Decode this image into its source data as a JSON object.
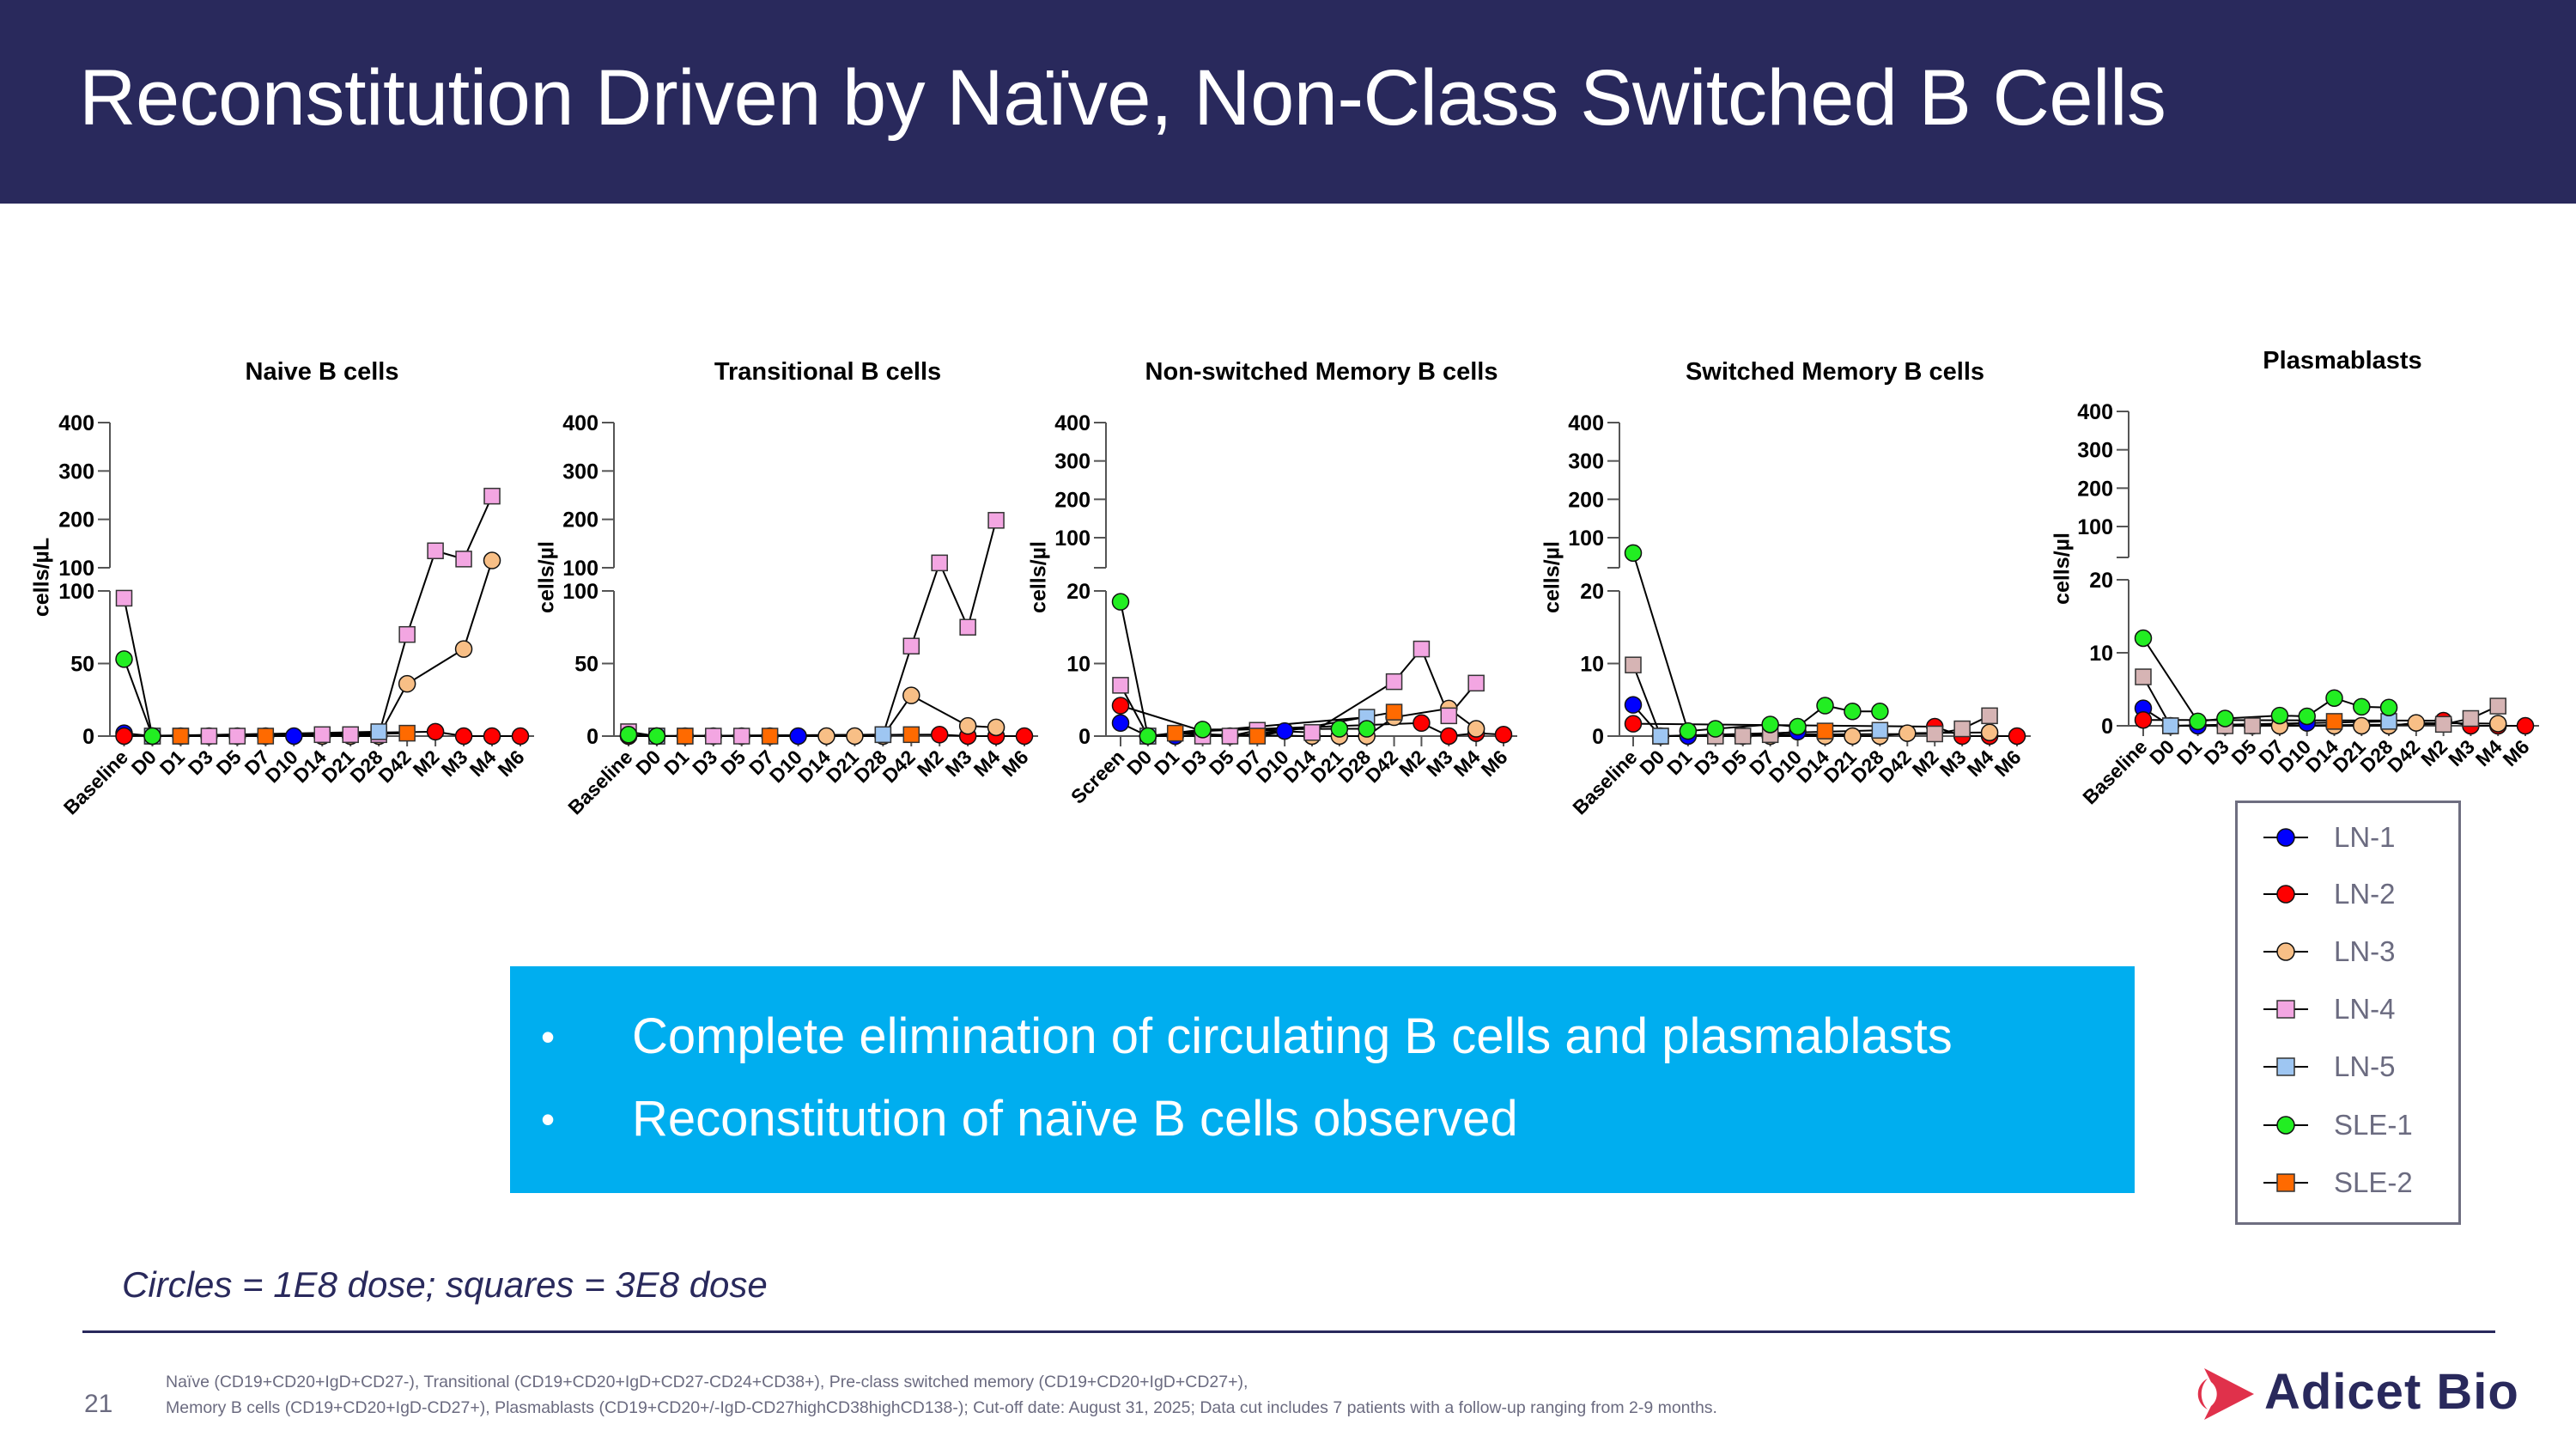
{
  "header": {
    "title": "Reconstitution Driven by Naïve, Non-Class Switched B Cells"
  },
  "callout": {
    "bullets": [
      "Complete elimination of circulating B cells and plasmablasts",
      "Reconstitution of naïve B cells observed"
    ],
    "bullet_char": "•",
    "background": "#00aeef"
  },
  "legend": {
    "items": [
      {
        "label": "LN-1",
        "marker": "circle",
        "color": "#0000ff"
      },
      {
        "label": "LN-2",
        "marker": "circle",
        "color": "#ff0000"
      },
      {
        "label": "LN-3",
        "marker": "circle",
        "color": "#f8bf86"
      },
      {
        "label": "LN-4",
        "marker": "square",
        "color": "#f3a6e2"
      },
      {
        "label": "LN-5",
        "marker": "square",
        "color": "#9ec6f2"
      },
      {
        "label": "SLE-1",
        "marker": "circle",
        "color": "#22ee22"
      },
      {
        "label": "SLE-2",
        "marker": "square",
        "color": "#ff6a00"
      }
    ]
  },
  "dose_note": "Circles = 1E8 dose; squares = 3E8 dose",
  "footer": {
    "page_number": "21",
    "footnote_lines": [
      "Naïve (CD19+CD20+IgD+CD27-), Transitional (CD19+CD20+IgD+CD27-CD24+CD38+), Pre-class switched memory (CD19+CD20+IgD+CD27+),",
      "Memory B cells (CD19+CD20+IgD-CD27+), Plasmablasts (CD19+CD20+/-IgD-CD27highCD38highCD138-); Cut-off date: August 31, 2025; Data cut includes 7 patients with a follow-up ranging from 2-9 months."
    ],
    "logo_text": "Adicet Bio",
    "logo_colors": {
      "mark": "#e0314b",
      "text": "#29295c"
    }
  },
  "chart_data": [
    {
      "type": "line",
      "title": "Naive B cells",
      "ylabel": "cells/µL",
      "xlabel": "",
      "categories": [
        "Baseline",
        "D0",
        "D1",
        "D3",
        "D5",
        "D7",
        "D10",
        "D14",
        "D21",
        "D28",
        "D42",
        "M2",
        "M3",
        "M4",
        "M6"
      ],
      "y_axis": {
        "broken": true,
        "lower_range": [
          0,
          100
        ],
        "lower_ticks": [
          0,
          50,
          100
        ],
        "upper_range": [
          100,
          400
        ],
        "upper_ticks": [
          100,
          200,
          300,
          400
        ]
      },
      "grid": false,
      "series": [
        {
          "name": "LN-1",
          "values": [
            2,
            0,
            0,
            0,
            0,
            null,
            0,
            null,
            null,
            null,
            null,
            null,
            null,
            null,
            null
          ]
        },
        {
          "name": "LN-2",
          "values": [
            0,
            null,
            null,
            null,
            null,
            null,
            null,
            null,
            null,
            null,
            null,
            3,
            0,
            0,
            0
          ]
        },
        {
          "name": "LN-3",
          "values": [
            null,
            null,
            null,
            null,
            null,
            0,
            null,
            0,
            0,
            0,
            36,
            null,
            60,
            115,
            null
          ]
        },
        {
          "name": "LN-4",
          "values": [
            95,
            0,
            0,
            0,
            0,
            null,
            null,
            1,
            1,
            1,
            70,
            135,
            118,
            248,
            null
          ]
        },
        {
          "name": "LN-5",
          "values": [
            null,
            0,
            null,
            null,
            null,
            null,
            null,
            null,
            null,
            3,
            null,
            null,
            null,
            null,
            null
          ]
        },
        {
          "name": "SLE-1",
          "values": [
            53,
            0,
            null,
            null,
            null,
            null,
            null,
            null,
            null,
            null,
            null,
            null,
            null,
            null,
            null
          ]
        },
        {
          "name": "SLE-2",
          "values": [
            null,
            null,
            0,
            null,
            null,
            0,
            null,
            null,
            null,
            null,
            2,
            null,
            null,
            null,
            null
          ]
        }
      ]
    },
    {
      "type": "line",
      "title": "Transitional B cells",
      "ylabel": "cells/µl",
      "xlabel": "",
      "categories": [
        "Baseline",
        "D0",
        "D1",
        "D3",
        "D5",
        "D7",
        "D10",
        "D14",
        "D21",
        "D28",
        "D42",
        "M2",
        "M3",
        "M4",
        "M6"
      ],
      "y_axis": {
        "broken": true,
        "lower_range": [
          0,
          100
        ],
        "lower_ticks": [
          0,
          50,
          100
        ],
        "upper_range": [
          100,
          400
        ],
        "upper_ticks": [
          100,
          200,
          300,
          400
        ]
      },
      "grid": false,
      "series": [
        {
          "name": "LN-1",
          "values": [
            0,
            0,
            0,
            0,
            0,
            null,
            0,
            null,
            null,
            null,
            null,
            null,
            null,
            null,
            null
          ]
        },
        {
          "name": "LN-2",
          "values": [
            0,
            null,
            null,
            null,
            null,
            null,
            null,
            null,
            null,
            null,
            null,
            1,
            0,
            0,
            0
          ]
        },
        {
          "name": "LN-3",
          "values": [
            null,
            null,
            null,
            null,
            null,
            0,
            null,
            0,
            0,
            0,
            28,
            null,
            7,
            6,
            null
          ]
        },
        {
          "name": "LN-4",
          "values": [
            3,
            0,
            0,
            0,
            0,
            null,
            null,
            null,
            null,
            1,
            62,
            110,
            75,
            198,
            null
          ]
        },
        {
          "name": "LN-5",
          "values": [
            null,
            0,
            null,
            null,
            null,
            null,
            null,
            null,
            null,
            1,
            null,
            null,
            null,
            null,
            null
          ]
        },
        {
          "name": "SLE-1",
          "values": [
            1,
            0,
            null,
            null,
            null,
            null,
            null,
            null,
            null,
            null,
            null,
            null,
            null,
            null,
            null
          ]
        },
        {
          "name": "SLE-2",
          "values": [
            null,
            null,
            0,
            null,
            null,
            0,
            null,
            null,
            null,
            null,
            1,
            null,
            null,
            null,
            null
          ]
        }
      ]
    },
    {
      "type": "line",
      "title": "Non-switched Memory B cells",
      "ylabel": "cells/µl",
      "xlabel": "",
      "categories": [
        "Screen",
        "D0",
        "D1",
        "D3",
        "D5",
        "D7",
        "D10",
        "D14",
        "D21",
        "D28",
        "D42",
        "M2",
        "M3",
        "M4",
        "M6"
      ],
      "y_axis": {
        "broken": true,
        "lower_range": [
          0,
          20
        ],
        "lower_ticks": [
          0,
          10,
          20
        ],
        "upper_range": [
          100,
          400
        ],
        "upper_ticks": [
          100,
          200,
          300,
          400
        ]
      },
      "grid": false,
      "series": [
        {
          "name": "LN-1",
          "values": [
            1.8,
            0,
            0,
            0.2,
            0,
            null,
            0.7,
            null,
            null,
            null,
            null,
            null,
            null,
            null,
            null
          ]
        },
        {
          "name": "LN-2",
          "values": [
            4.2,
            null,
            null,
            0.7,
            null,
            null,
            null,
            null,
            null,
            null,
            null,
            1.8,
            0,
            0.4,
            0.2
          ]
        },
        {
          "name": "LN-3",
          "values": [
            null,
            null,
            null,
            null,
            null,
            0.1,
            null,
            0,
            0,
            0,
            2.6,
            null,
            3.8,
            1,
            null
          ]
        },
        {
          "name": "LN-4",
          "values": [
            7,
            0,
            null,
            0,
            0,
            0.8,
            null,
            0.5,
            null,
            null,
            7.5,
            12,
            2.8,
            7.3,
            null
          ]
        },
        {
          "name": "LN-5",
          "values": [
            null,
            0,
            null,
            null,
            null,
            null,
            null,
            null,
            null,
            2.6,
            null,
            null,
            null,
            null,
            null
          ]
        },
        {
          "name": "SLE-1",
          "values": [
            18.5,
            0,
            null,
            0.9,
            null,
            null,
            null,
            null,
            1,
            1,
            null,
            null,
            null,
            null,
            null
          ]
        },
        {
          "name": "SLE-2",
          "values": [
            null,
            null,
            0.4,
            null,
            null,
            0,
            null,
            null,
            null,
            null,
            3.3,
            null,
            null,
            null,
            null
          ]
        }
      ]
    },
    {
      "type": "line",
      "title": "Switched Memory B cells",
      "ylabel": "cells/µl",
      "xlabel": "",
      "categories": [
        "Baseline",
        "D0",
        "D1",
        "D3",
        "D5",
        "D7",
        "D10",
        "D14",
        "D21",
        "D28",
        "D42",
        "M2",
        "M3",
        "M4",
        "M6"
      ],
      "y_axis": {
        "broken": true,
        "lower_range": [
          0,
          20
        ],
        "lower_ticks": [
          0,
          10,
          20
        ],
        "upper_range": [
          100,
          400
        ],
        "upper_ticks": [
          100,
          200,
          300,
          400
        ]
      },
      "grid": false,
      "series": [
        {
          "name": "LN-1",
          "values": [
            4.3,
            0,
            0,
            0.1,
            0,
            null,
            0.6,
            null,
            null,
            null,
            null,
            null,
            null,
            null,
            null
          ]
        },
        {
          "name": "LN-2",
          "values": [
            1.7,
            null,
            null,
            null,
            null,
            null,
            null,
            null,
            null,
            null,
            null,
            1.3,
            0,
            0,
            0
          ]
        },
        {
          "name": "LN-3",
          "values": [
            null,
            null,
            null,
            null,
            null,
            0,
            null,
            0,
            0,
            0,
            0.4,
            null,
            null,
            0.5,
            null
          ]
        },
        {
          "name": "LN-4",
          "values": [
            9.8,
            0,
            null,
            0,
            0,
            0.2,
            null,
            null,
            null,
            null,
            null,
            0.3,
            1,
            2.8,
            null
          ],
          "color": "#d6b4b4"
        },
        {
          "name": "LN-5",
          "values": [
            null,
            0,
            null,
            null,
            null,
            null,
            null,
            null,
            null,
            0.8,
            null,
            null,
            null,
            null,
            null
          ]
        },
        {
          "name": "SLE-1",
          "values": [
            60,
            null,
            0.7,
            1,
            null,
            1.6,
            1.3,
            4.2,
            3.4,
            3.4,
            null,
            null,
            null,
            null,
            null
          ]
        },
        {
          "name": "SLE-2",
          "values": [
            null,
            null,
            null,
            null,
            null,
            null,
            null,
            0.7,
            null,
            null,
            null,
            null,
            null,
            null,
            null
          ]
        }
      ]
    },
    {
      "type": "line",
      "title": "Plasmablasts",
      "ylabel": "cells/µl",
      "xlabel": "",
      "categories": [
        "Baseline",
        "D0",
        "D1",
        "D3",
        "D5",
        "D7",
        "D10",
        "D14",
        "D21",
        "D28",
        "D42",
        "M2",
        "M3",
        "M4",
        "M6"
      ],
      "y_axis": {
        "broken": true,
        "lower_range": [
          0,
          20
        ],
        "lower_ticks": [
          0,
          10,
          20
        ],
        "upper_range": [
          100,
          400
        ],
        "upper_ticks": [
          100,
          200,
          300,
          400
        ]
      },
      "grid": false,
      "series": [
        {
          "name": "LN-1",
          "values": [
            2.4,
            0,
            0,
            0,
            0,
            null,
            0.4,
            null,
            null,
            null,
            null,
            null,
            null,
            null,
            null
          ]
        },
        {
          "name": "LN-2",
          "values": [
            0.8,
            null,
            null,
            null,
            null,
            null,
            null,
            null,
            null,
            null,
            null,
            0.7,
            0,
            0,
            0
          ]
        },
        {
          "name": "LN-3",
          "values": [
            null,
            null,
            null,
            null,
            null,
            0,
            null,
            0,
            0,
            0,
            0.4,
            null,
            null,
            0.3,
            null
          ]
        },
        {
          "name": "LN-4",
          "values": [
            6.7,
            0,
            null,
            0,
            0,
            null,
            null,
            null,
            null,
            null,
            null,
            0.2,
            1,
            2.7,
            null
          ],
          "color": "#d6b4b4"
        },
        {
          "name": "LN-5",
          "values": [
            null,
            0,
            null,
            null,
            null,
            null,
            null,
            null,
            null,
            0.6,
            null,
            null,
            null,
            null,
            null
          ]
        },
        {
          "name": "SLE-1",
          "values": [
            12,
            null,
            0.6,
            1,
            null,
            1.4,
            1.3,
            3.8,
            2.6,
            2.5,
            null,
            null,
            null,
            null,
            null
          ]
        },
        {
          "name": "SLE-2",
          "values": [
            null,
            null,
            null,
            null,
            null,
            null,
            null,
            0.6,
            null,
            null,
            null,
            null,
            null,
            null,
            null
          ]
        }
      ]
    }
  ]
}
